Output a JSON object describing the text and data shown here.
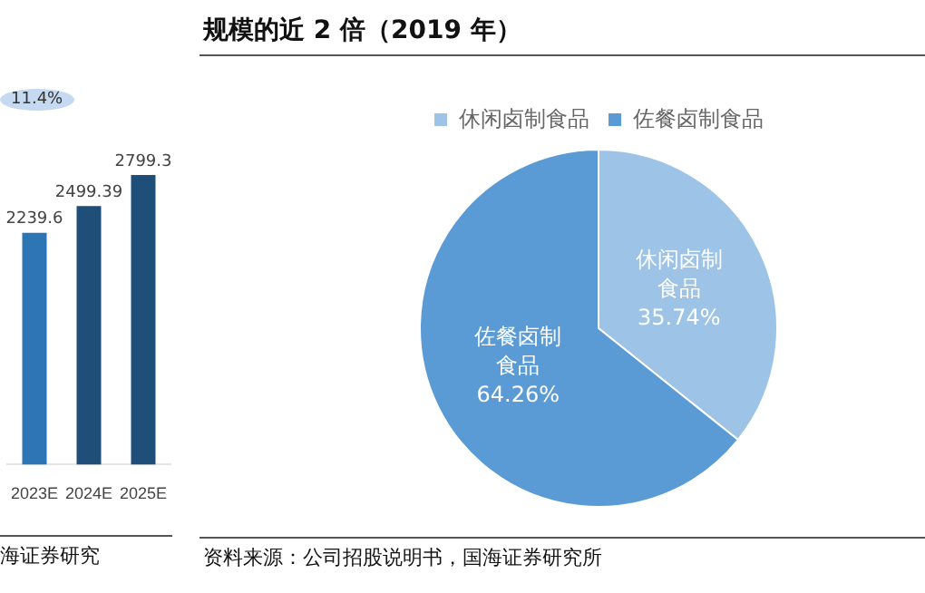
{
  "chart_data": [
    {
      "type": "bar",
      "categories": [
        "2023E",
        "2024E",
        "2025E"
      ],
      "values": [
        2239.6,
        2499.39,
        2799.3
      ],
      "colors": [
        "#2e75b6",
        "#1f4e79",
        "#1f4e79"
      ],
      "data_labels": true,
      "annotations": [
        "11.4%",
        "海证券研究"
      ]
    },
    {
      "type": "pie",
      "title": "规模的近 2 倍（2019 年）",
      "categories": [
        "休闲卤制食品",
        "佐餐卤制食品"
      ],
      "values": [
        35.74,
        64.26
      ],
      "colors": [
        "#9dc3e6",
        "#5b9bd5"
      ],
      "value_labels": [
        "休闲卤制食品35.74%",
        "佐餐卤制食品64.26%"
      ],
      "legend": "top",
      "annotations": [
        "资料来源：公司招股说明书，国海证券研究所"
      ]
    }
  ]
}
